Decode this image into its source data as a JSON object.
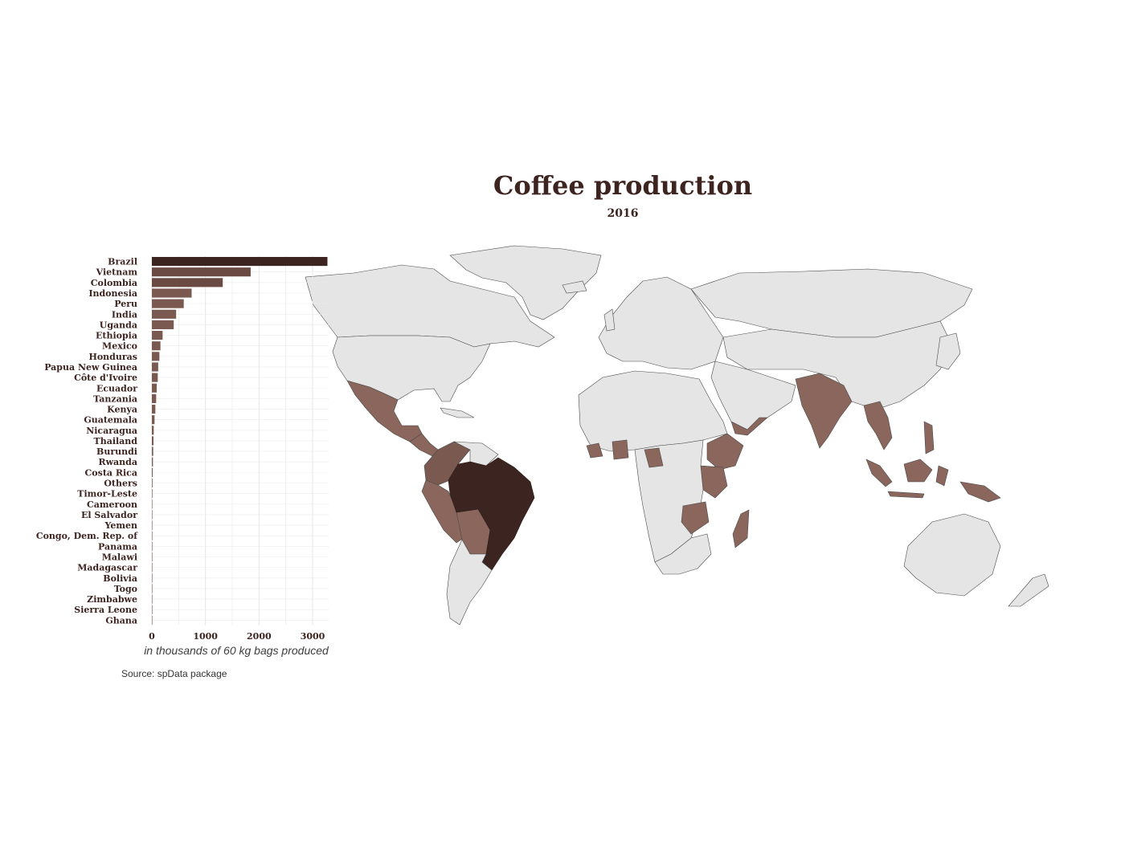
{
  "chart_data": [
    {
      "type": "bar",
      "orientation": "horizontal",
      "title": "Coffee production",
      "subtitle": "2016",
      "xlabel": "in thousands of 60 kg bags produced",
      "xlim": [
        0,
        3300
      ],
      "xticks": [
        0,
        1000,
        2000,
        3000
      ],
      "grid": true,
      "categories": [
        "Brazil",
        "Vietnam",
        "Colombia",
        "Indonesia",
        "Peru",
        "India",
        "Uganda",
        "Ethiopia",
        "Mexico",
        "Honduras",
        "Papua New Guinea",
        "Côte d'Ivoire",
        "Ecuador",
        "Tanzania",
        "Kenya",
        "Guatemala",
        "Nicaragua",
        "Thailand",
        "Burundi",
        "Rwanda",
        "Costa Rica",
        "Others",
        "Timor-Leste",
        "Cameroon",
        "El Salvador",
        "Yemen",
        "Congo, Dem. Rep. of",
        "Panama",
        "Malawi",
        "Madagascar",
        "Bolivia",
        "Togo",
        "Zimbabwe",
        "Sierra Leone",
        "Ghana"
      ],
      "values": [
        3277,
        1844,
        1323,
        742,
        595,
        453,
        408,
        200,
        160,
        140,
        118,
        110,
        90,
        80,
        65,
        50,
        35,
        30,
        25,
        20,
        15,
        12,
        10,
        8,
        6,
        5,
        4,
        3,
        3,
        2,
        2,
        2,
        1,
        1,
        1
      ]
    },
    {
      "type": "choropleth",
      "caption": "Source: spData package",
      "colors": {
        "land": "#e5e5e5",
        "border": "#4a4a4a",
        "low": "#8a665c",
        "mid": "#7a5a50",
        "high": "#3c2420"
      }
    }
  ]
}
